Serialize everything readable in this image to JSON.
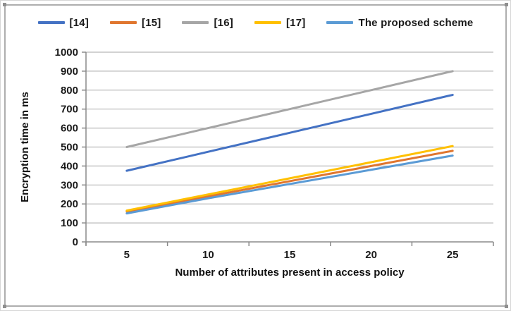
{
  "frame": {
    "border_color": "#aeaeae"
  },
  "chart_data": {
    "type": "line",
    "x": [
      5,
      10,
      15,
      20,
      25
    ],
    "x_tick_labels": [
      "5",
      "10",
      "15",
      "20",
      "25"
    ],
    "series": [
      {
        "name": "[14]",
        "color": "#4472C4",
        "values": [
          375,
          475,
          575,
          675,
          775
        ]
      },
      {
        "name": "[15]",
        "color": "#E0762F",
        "values": [
          160,
          240,
          320,
          400,
          480
        ]
      },
      {
        "name": "[16]",
        "color": "#A6A6A6",
        "values": [
          500,
          600,
          700,
          800,
          900
        ]
      },
      {
        "name": "[17]",
        "color": "#FFC000",
        "values": [
          165,
          250,
          335,
          420,
          505
        ]
      },
      {
        "name": "The proposed scheme",
        "color": "#5B9BD5",
        "values": [
          150,
          230,
          305,
          380,
          455
        ]
      }
    ],
    "title": "",
    "xlabel": "Number of attributes present in access policy",
    "ylabel": "Encryption time in ms",
    "ylim": [
      0,
      1000
    ],
    "ytick_step": 100,
    "grid": true,
    "legend_position": "top",
    "gridline_color": "#b8b8b8",
    "axis_color": "#8a8a8a"
  }
}
